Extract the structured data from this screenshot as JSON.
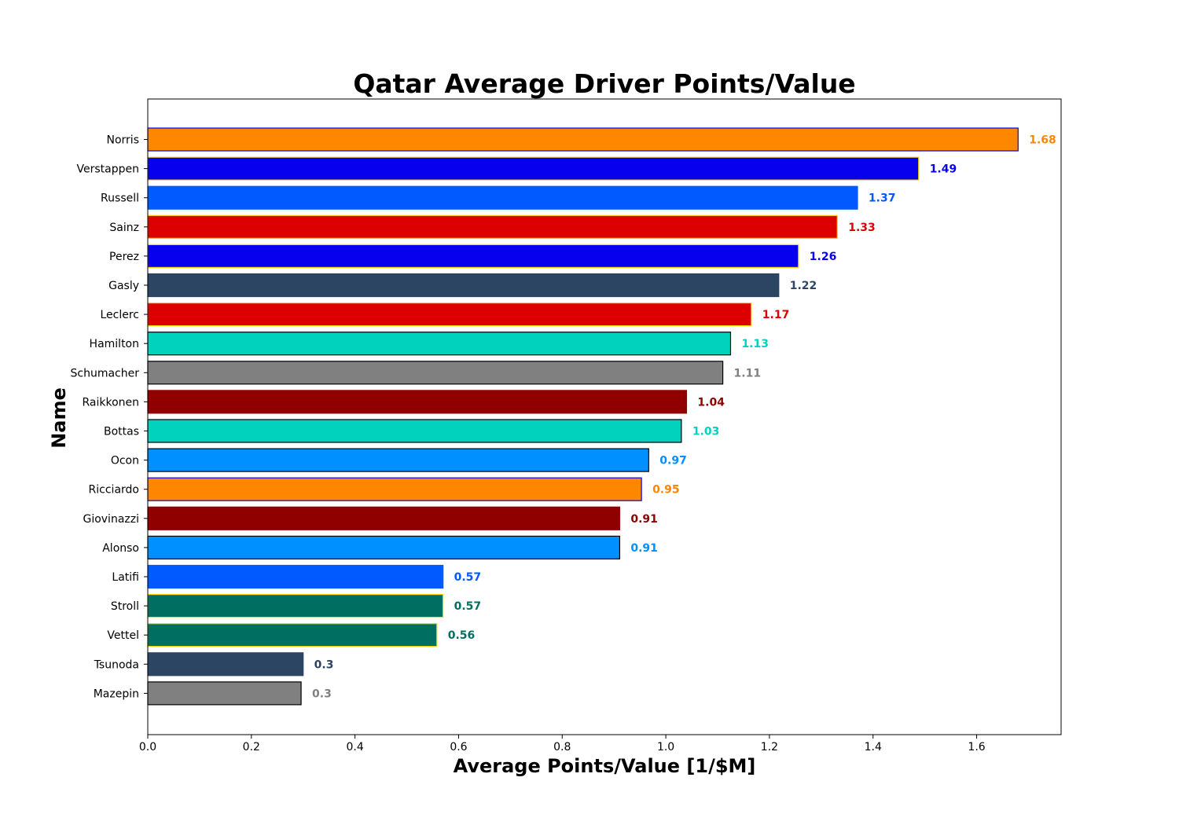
{
  "chart_data": {
    "type": "bar",
    "orientation": "horizontal",
    "title": "Qatar Average Driver Points/Value",
    "xlabel": "Average Points/Value [1/$M]",
    "ylabel": "Name",
    "xlim": [
      0,
      1.763
    ],
    "xticks": [
      "0.0",
      "0.2",
      "0.4",
      "0.6",
      "0.8",
      "1.0",
      "1.2",
      "1.4",
      "1.6"
    ],
    "grid": false,
    "categories": [
      "Norris",
      "Verstappen",
      "Russell",
      "Sainz",
      "Perez",
      "Gasly",
      "Leclerc",
      "Hamilton",
      "Schumacher",
      "Raikkonen",
      "Bottas",
      "Ocon",
      "Ricciardo",
      "Giovinazzi",
      "Alonso",
      "Latifi",
      "Stroll",
      "Vettel",
      "Tsunoda",
      "Mazepin"
    ],
    "values": [
      1.68,
      1.488,
      1.37,
      1.331,
      1.256,
      1.218,
      1.165,
      1.125,
      1.11,
      1.04,
      1.03,
      0.967,
      0.953,
      0.911,
      0.911,
      0.57,
      0.57,
      0.558,
      0.3,
      0.296
    ],
    "data_labels": [
      "1.68",
      "1.49",
      "1.37",
      "1.33",
      "1.26",
      "1.22",
      "1.17",
      "1.13",
      "1.11",
      "1.04",
      "1.03",
      "0.97",
      "0.95",
      "0.91",
      "0.91",
      "0.57",
      "0.57",
      "0.56",
      "0.3",
      "0.3"
    ],
    "colors": [
      "#ff8700",
      "#0600ef",
      "#005aff",
      "#dc0000",
      "#0600ef",
      "#2b4562",
      "#dc0000",
      "#00d2be",
      "#808080",
      "#900000",
      "#00d2be",
      "#0090ff",
      "#ff8700",
      "#900000",
      "#0090ff",
      "#005aff",
      "#006f62",
      "#006f62",
      "#2b4562",
      "#808080"
    ],
    "edge_colors": [
      "#0600ef",
      "#ffd800",
      "#005aff",
      "#ffd800",
      "#ffd800",
      "#2b4562",
      "#ffd800",
      "#000000",
      "#000000",
      "#900000",
      "#000000",
      "#000000",
      "#0600ef",
      "#900000",
      "#000000",
      "#005aff",
      "#ffd800",
      "#ffd800",
      "#2b4562",
      "#000000"
    ],
    "label_colors": [
      "#ff8700",
      "#0600ef",
      "#005aff",
      "#dc0000",
      "#0600ef",
      "#2b4562",
      "#dc0000",
      "#00d2be",
      "#808080",
      "#900000",
      "#00d2be",
      "#0090ff",
      "#ff8700",
      "#900000",
      "#0090ff",
      "#005aff",
      "#006f62",
      "#006f62",
      "#2b4562",
      "#808080"
    ]
  }
}
